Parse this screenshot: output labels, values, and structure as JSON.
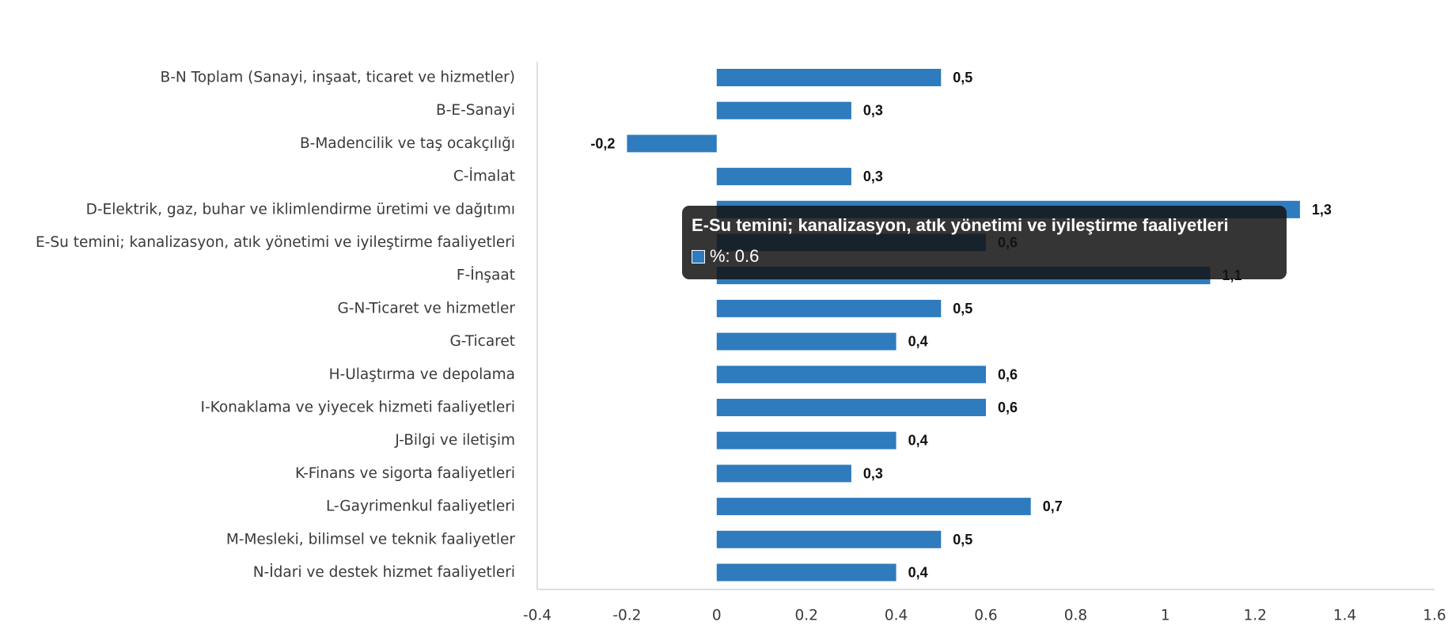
{
  "chart_data": {
    "type": "bar",
    "orientation": "horizontal",
    "categories": [
      "B-N Toplam (Sanayi, inşaat, ticaret ve hizmetler)",
      "B-E-Sanayi",
      "B-Madencilik ve taş ocakçılığı",
      "C-İmalat",
      "D-Elektrik, gaz, buhar ve iklimlendirme üretimi ve dağıtımı",
      "E-Su temini; kanalizasyon, atık yönetimi ve iyileştirme faaliyetleri",
      "F-İnşaat",
      "G-N-Ticaret ve hizmetler",
      "G-Ticaret",
      "H-Ulaştırma ve depolama",
      "I-Konaklama ve yiyecek hizmeti faaliyetleri",
      "J-Bilgi ve iletişim",
      "K-Finans ve sigorta faaliyetleri",
      "L-Gayrimenkul faaliyetleri",
      "M-Mesleki, bilimsel ve teknik faaliyetler",
      "N-İdari ve destek hizmet faaliyetleri"
    ],
    "series": [
      {
        "name": "%",
        "color": "#2e7bbd",
        "values": [
          0.5,
          0.3,
          -0.2,
          0.3,
          1.3,
          0.6,
          1.1,
          0.5,
          0.4,
          0.6,
          0.6,
          0.4,
          0.3,
          0.7,
          0.5,
          0.4
        ],
        "data_labels": [
          "0,5",
          "0,3",
          "-0,2",
          "0,3",
          "1,3",
          "0,6",
          "1,1",
          "0,5",
          "0,4",
          "0,6",
          "0,6",
          "0,4",
          "0,3",
          "0,7",
          "0,5",
          "0,4"
        ]
      }
    ],
    "xlim": [
      -0.4,
      1.6
    ],
    "x_ticks": [
      "-0.4",
      "-0.2",
      "0",
      "0.2",
      "0.4",
      "0.6",
      "0.8",
      "1",
      "1.2",
      "1.4",
      "1.6"
    ],
    "grid": false,
    "legend": "none",
    "title": "",
    "xlabel": "",
    "ylabel": ""
  },
  "tooltip": {
    "title": "E-Su temini; kanalizasyon, atık yönetimi ve iyileştirme faaliyetleri",
    "text": "%: 0.6",
    "swatch_color": "#2e7bbd"
  }
}
